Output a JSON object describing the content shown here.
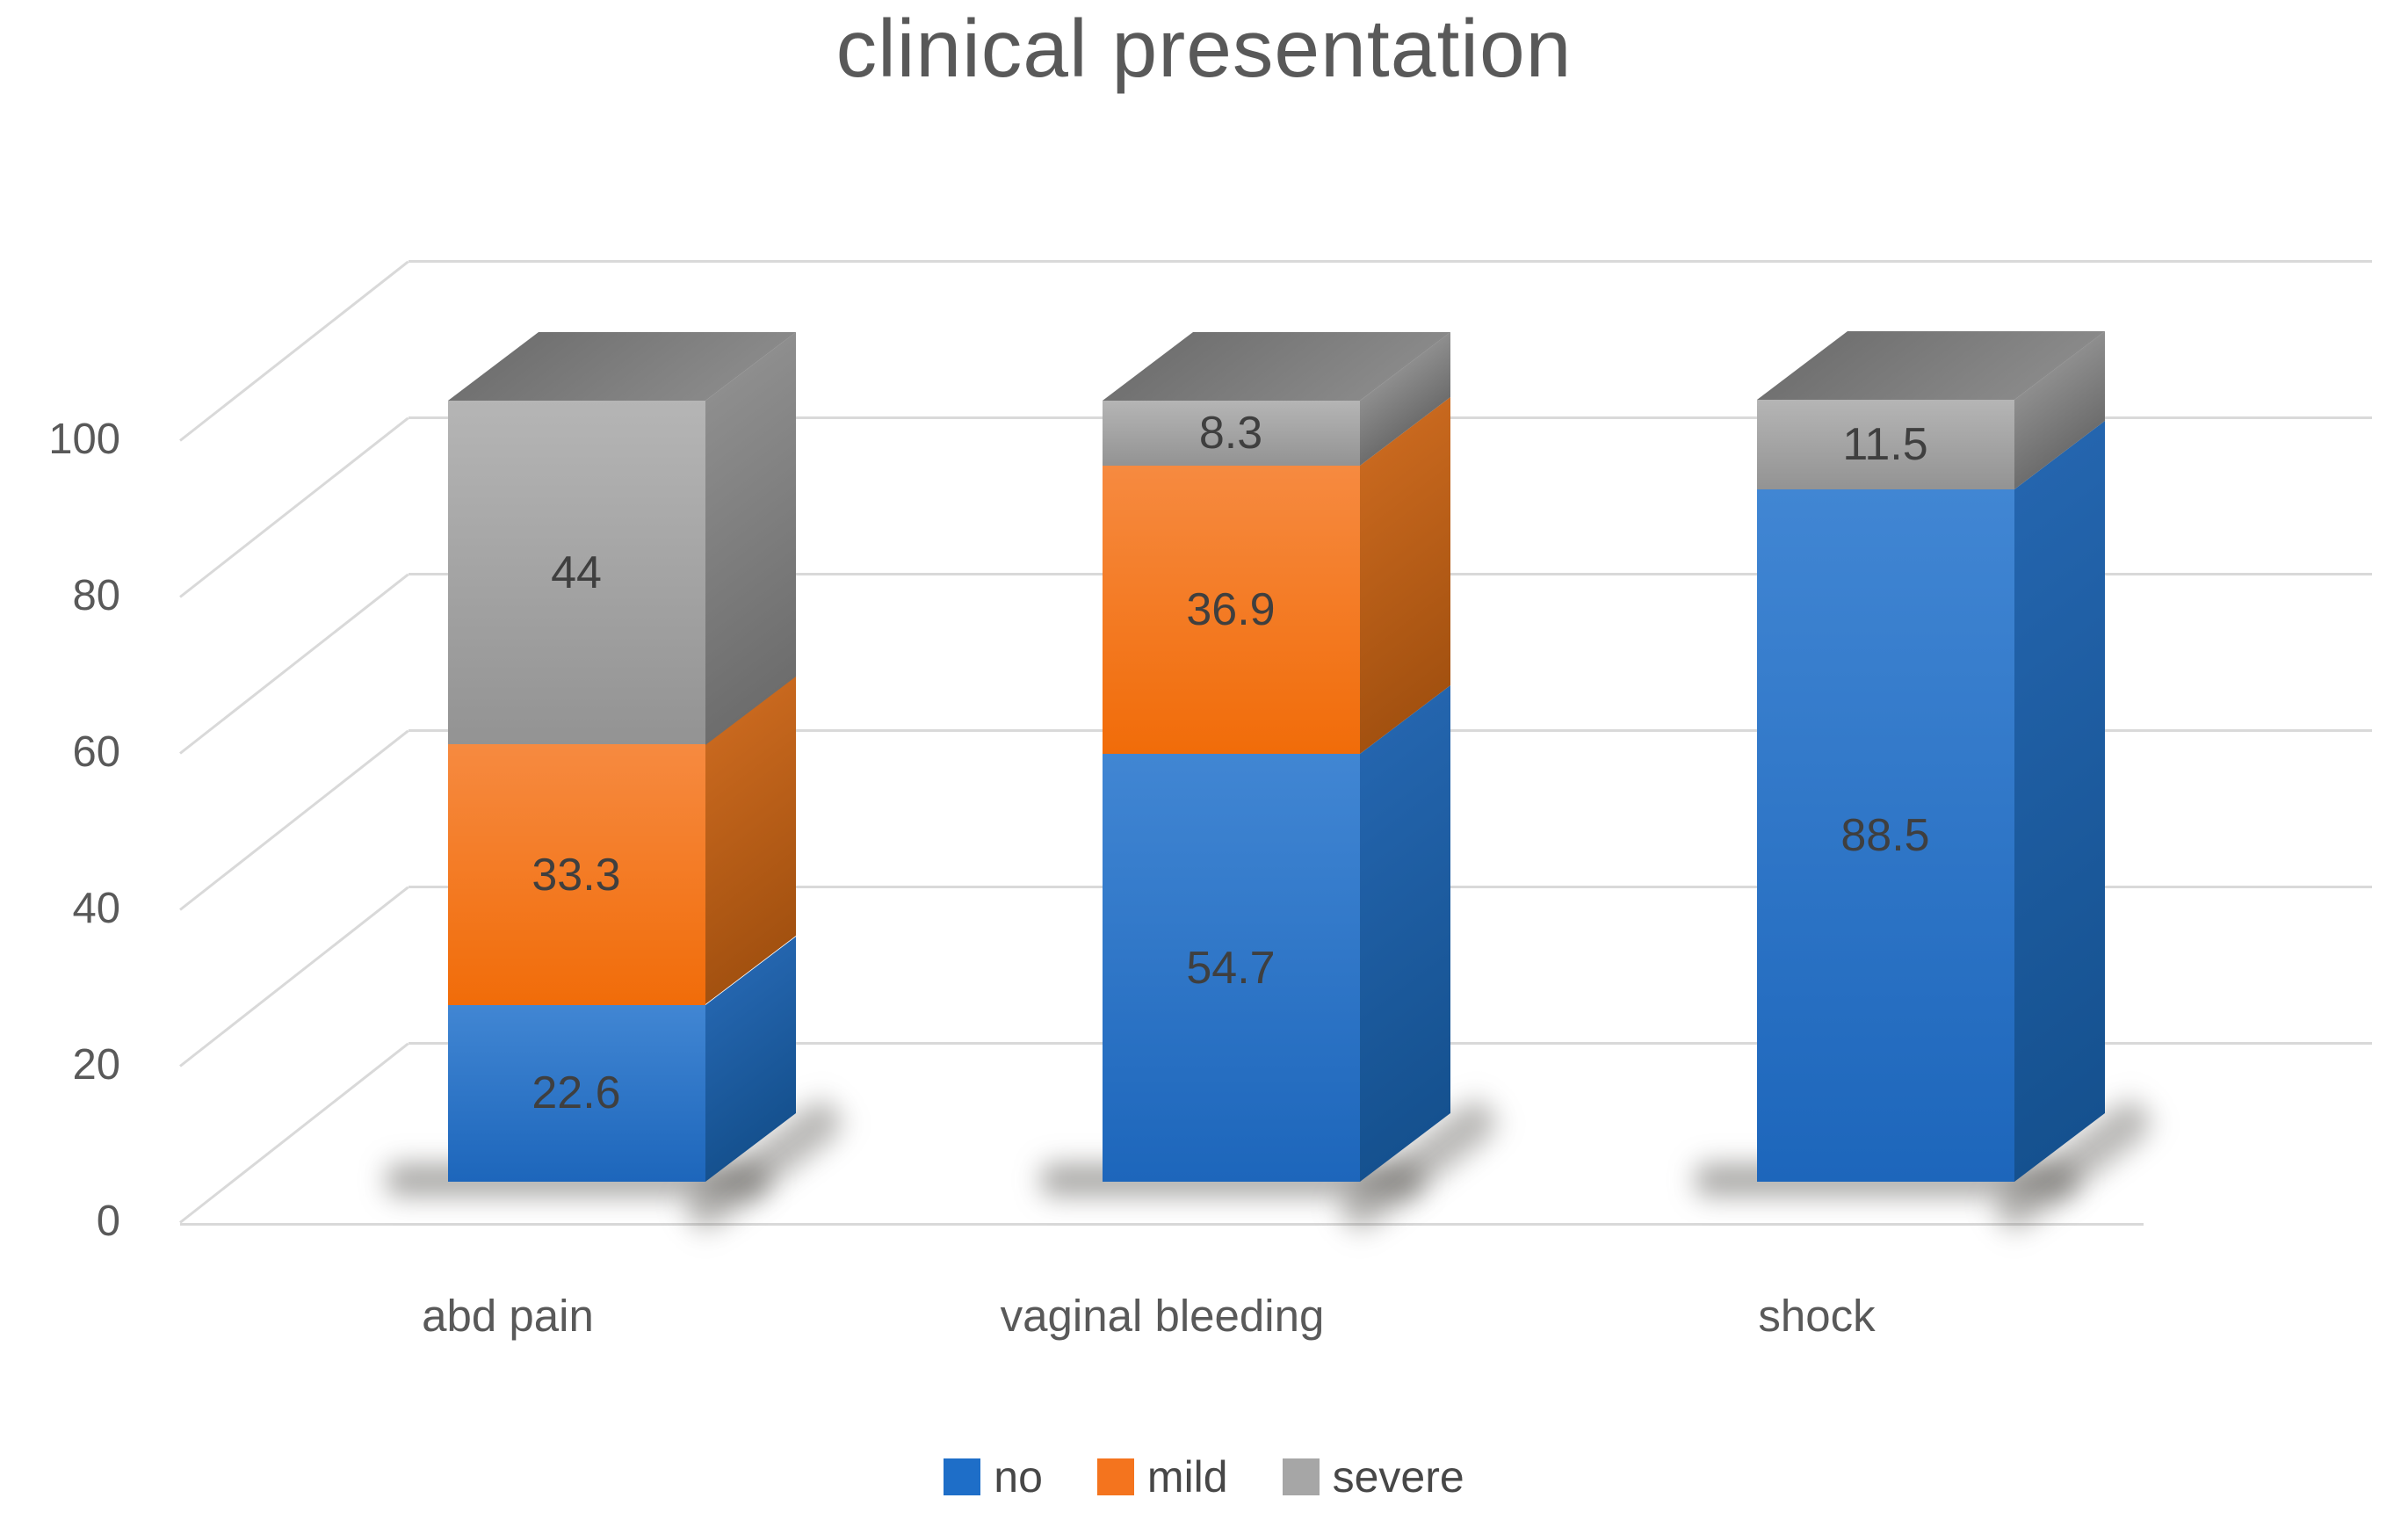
{
  "chart_data": {
    "type": "bar",
    "subtype": "stacked-3d-column",
    "title": "clinical presentation",
    "categories": [
      "abd pain",
      "vaginal bleeding",
      "shock"
    ],
    "series": [
      {
        "name": "no",
        "color": "#1E6EC8",
        "values": [
          22.6,
          54.7,
          88.5
        ],
        "labels": [
          "22.6",
          "54.7",
          "88.5"
        ]
      },
      {
        "name": "mild",
        "color": "#F4741E",
        "values": [
          33.3,
          36.9,
          0
        ],
        "labels": [
          "33.3",
          "36.9",
          ""
        ]
      },
      {
        "name": "severe",
        "color": "#A6A6A6",
        "values": [
          44,
          8.3,
          11.5
        ],
        "labels": [
          "44",
          "8.3",
          "11.5"
        ]
      }
    ],
    "y_ticks": [
      0,
      20,
      40,
      60,
      80,
      100
    ],
    "ylim": [
      0,
      100
    ],
    "grid": true,
    "data_labels": true,
    "legend_position": "bottom",
    "text_color": "#595959",
    "data_label_color": "#3F3F3F",
    "gridline_color": "#D9D9D9"
  }
}
